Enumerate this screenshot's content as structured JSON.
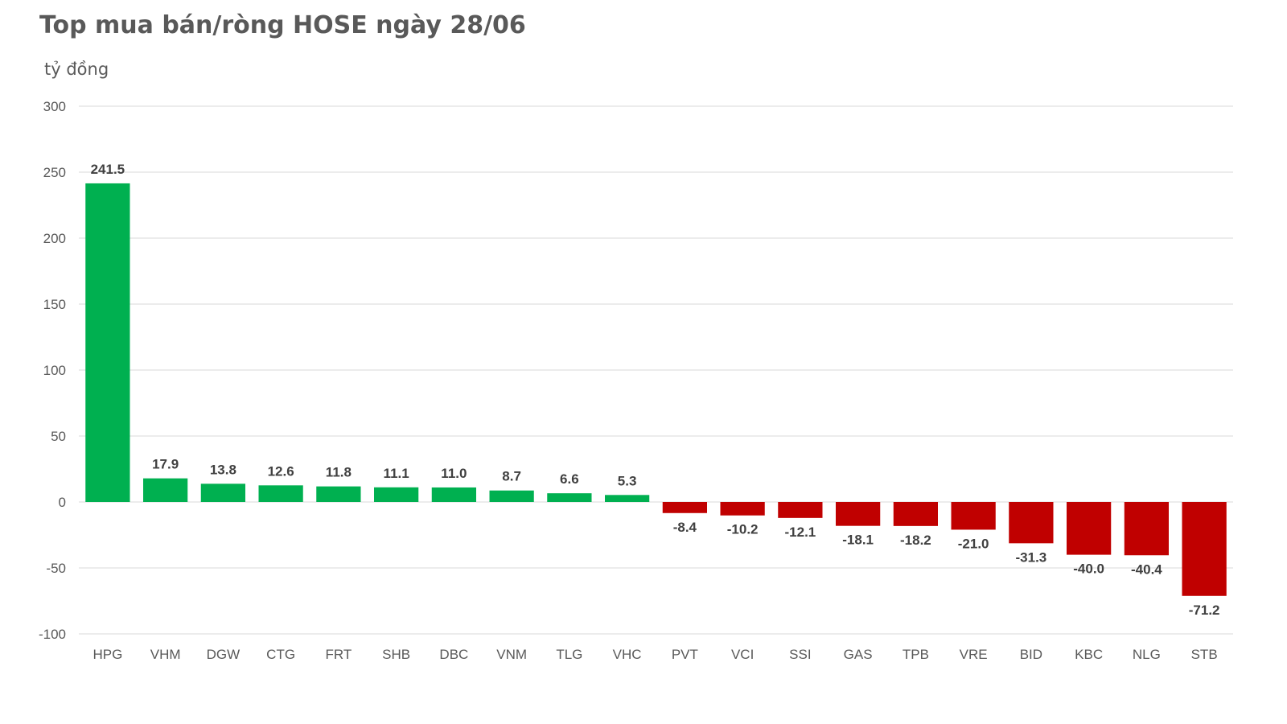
{
  "chart_data": {
    "type": "bar",
    "title": "Top mua bán/ròng HOSE ngày 28/06",
    "ylabel": "tỷ đồng",
    "xlabel": "",
    "ylim": [
      -100,
      300
    ],
    "yticks": [
      300,
      250,
      200,
      150,
      100,
      50,
      0,
      -50,
      -100
    ],
    "grid": true,
    "categories": [
      "HPG",
      "VHM",
      "DGW",
      "CTG",
      "FRT",
      "SHB",
      "DBC",
      "VNM",
      "TLG",
      "VHC",
      "PVT",
      "VCI",
      "SSI",
      "GAS",
      "TPB",
      "VRE",
      "BID",
      "KBC",
      "NLG",
      "STB"
    ],
    "values": [
      241.5,
      17.9,
      13.8,
      12.6,
      11.8,
      11.1,
      11.0,
      8.7,
      6.6,
      5.3,
      -8.4,
      -10.2,
      -12.1,
      -18.1,
      -18.2,
      -21.0,
      -31.3,
      -40.0,
      -40.4,
      -71.2
    ],
    "data_labels": [
      "241.5",
      "17.9",
      "13.8",
      "12.6",
      "11.8",
      "11.1",
      "11.0",
      "8.7",
      "6.6",
      "5.3",
      "-8.4",
      "-10.2",
      "-12.1",
      "-18.1",
      "-18.2",
      "-21.0",
      "-31.3",
      "-40.0",
      "-40.4",
      "-71.2"
    ],
    "colors": {
      "positive": "#00b050",
      "negative": "#c00000",
      "grid": "#d9d9d9",
      "tick_text": "#595959",
      "label_text": "#404040"
    }
  }
}
